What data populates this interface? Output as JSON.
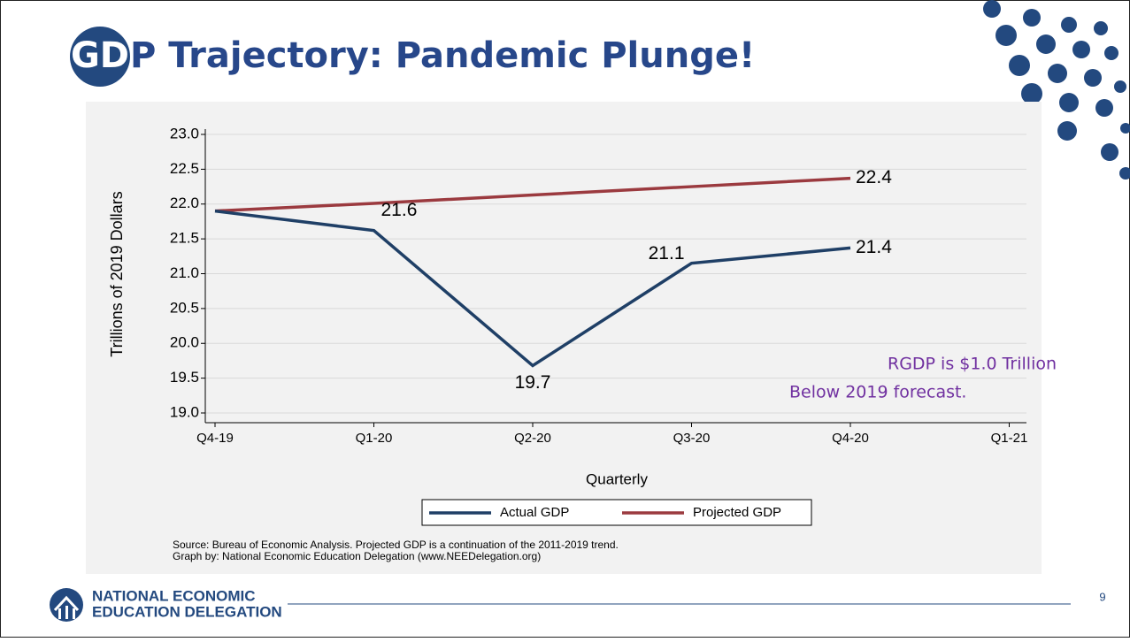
{
  "slide": {
    "title_badge": "GD",
    "title": "P Trajectory: Pandemic Plunge!",
    "logo_line1": "NATIONAL ECONOMIC",
    "logo_line2": "EDUCATION DELEGATION",
    "page_number": "9"
  },
  "chart_data": {
    "type": "line",
    "categories": [
      "Q4-19",
      "Q1-20",
      "Q2-20",
      "Q3-20",
      "Q4-20",
      "Q1-21"
    ],
    "series": [
      {
        "name": "Actual GDP",
        "color": "#1f3f66",
        "values": [
          21.9,
          21.62,
          19.68,
          21.15,
          21.37,
          null
        ],
        "value_labels": [
          null,
          "21.6",
          "19.7",
          "21.1",
          "21.4",
          null
        ]
      },
      {
        "name": "Projected GDP",
        "color": "#9b3a3f",
        "values": [
          21.9,
          22.01,
          22.13,
          22.25,
          22.37,
          null
        ],
        "value_labels": [
          null,
          null,
          null,
          null,
          "22.4",
          null
        ]
      }
    ],
    "ylim": [
      19,
      23
    ],
    "yticks": [
      {
        "value": 19,
        "label": "19.0"
      },
      19.5,
      {
        "value": 20,
        "label": "20.0"
      },
      20.5,
      {
        "value": 21,
        "label": "21.0"
      },
      21.5,
      {
        "value": 22,
        "label": "22.0"
      },
      22.5,
      {
        "value": 23,
        "label": "23.0"
      }
    ],
    "ylabel": "Trillions of 2019 Dollars",
    "xlabel": "Quarterly",
    "grid": true,
    "annotation": [
      "RGDP is $1.0 Trillion",
      "Below 2019 forecast."
    ],
    "source": [
      "Source: Bureau of Economic Analysis. Projected GDP is a continuation of the 2011-2019 trend.",
      "Graph by: National Economic Education Delegation (www.NEEDelegation.org)"
    ]
  }
}
